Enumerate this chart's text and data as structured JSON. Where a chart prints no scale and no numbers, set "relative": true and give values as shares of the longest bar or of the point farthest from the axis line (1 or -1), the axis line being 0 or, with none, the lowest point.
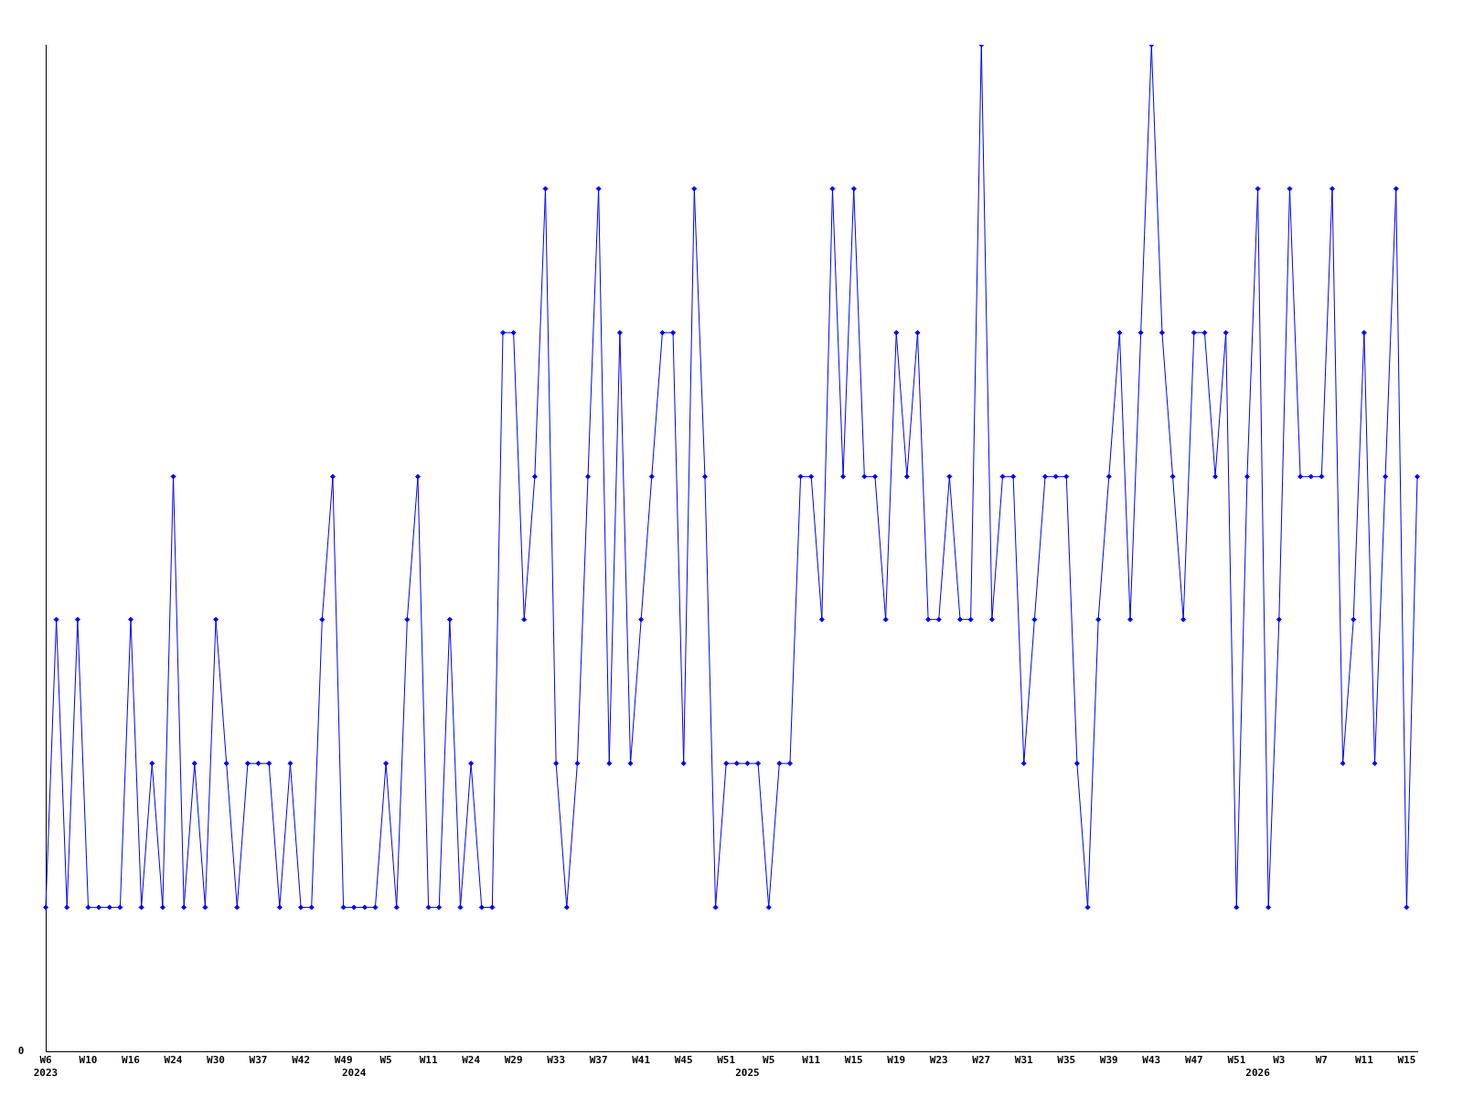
{
  "chart_data": {
    "type": "line",
    "relative": true,
    "annotations": [
      "0"
    ],
    "marker": "diamond",
    "grid": false,
    "legend": false,
    "categories": [
      "W6\n2023",
      null,
      null,
      null,
      "W10",
      null,
      null,
      null,
      "W16",
      null,
      null,
      null,
      "W24",
      null,
      null,
      null,
      "W30",
      null,
      null,
      null,
      "W37",
      null,
      null,
      null,
      "W42",
      null,
      null,
      null,
      "W49",
      "\n2024",
      null,
      null,
      "W5",
      null,
      null,
      null,
      "W11",
      null,
      null,
      null,
      "W24",
      null,
      null,
      null,
      "W29",
      null,
      null,
      null,
      "W33",
      null,
      null,
      null,
      "W37",
      null,
      null,
      null,
      "W41",
      null,
      null,
      null,
      "W45",
      null,
      null,
      null,
      "W51",
      null,
      "\n2025",
      null,
      "W5",
      null,
      null,
      null,
      "W11",
      null,
      null,
      null,
      "W15",
      null,
      null,
      null,
      "W19",
      null,
      null,
      null,
      "W23",
      null,
      null,
      null,
      "W27",
      null,
      null,
      null,
      "W31",
      null,
      null,
      null,
      "W35",
      null,
      null,
      null,
      "W39",
      null,
      null,
      null,
      "W43",
      null,
      null,
      null,
      "W47",
      null,
      null,
      null,
      "W51",
      null,
      "\n2026",
      null,
      "W3",
      null,
      null,
      null,
      "W7",
      null,
      null,
      null,
      "W11",
      null,
      null,
      null,
      "W15",
      null
    ],
    "series": [
      {
        "color": "#0000ff",
        "values": [
          0.143,
          0.429,
          0.143,
          0.429,
          0.143,
          0.143,
          0.143,
          0.143,
          0.429,
          0.143,
          0.286,
          0.143,
          0.571,
          0.143,
          0.286,
          0.143,
          0.429,
          0.286,
          0.143,
          0.286,
          0.286,
          0.286,
          0.143,
          0.286,
          0.143,
          0.143,
          0.429,
          0.571,
          0.143,
          0.143,
          0.143,
          0.143,
          0.286,
          0.143,
          0.429,
          0.571,
          0.143,
          0.143,
          0.429,
          0.143,
          0.286,
          0.143,
          0.143,
          0.714,
          0.714,
          0.429,
          0.571,
          0.857,
          0.286,
          0.143,
          0.286,
          0.571,
          0.857,
          0.286,
          0.714,
          0.286,
          0.429,
          0.571,
          0.714,
          0.714,
          0.286,
          0.857,
          0.571,
          0.143,
          0.286,
          0.286,
          0.286,
          0.286,
          0.143,
          0.286,
          0.286,
          0.571,
          0.571,
          0.429,
          0.857,
          0.571,
          0.857,
          0.571,
          0.571,
          0.429,
          0.714,
          0.571,
          0.714,
          0.429,
          0.429,
          0.571,
          0.429,
          0.429,
          1,
          0.429,
          0.571,
          0.571,
          0.286,
          0.429,
          0.571,
          0.571,
          0.571,
          0.286,
          0.143,
          0.429,
          0.571,
          0.714,
          0.429,
          0.714,
          1,
          0.714,
          0.571,
          0.429,
          0.714,
          0.714,
          0.571,
          0.714,
          0.143,
          0.571,
          0.857,
          0.143,
          0.429,
          0.857,
          0.571,
          0.571,
          0.571,
          0.857,
          0.286,
          0.429,
          0.714,
          0.286,
          0.571,
          0.857,
          0.143,
          0.571
        ]
      }
    ]
  }
}
